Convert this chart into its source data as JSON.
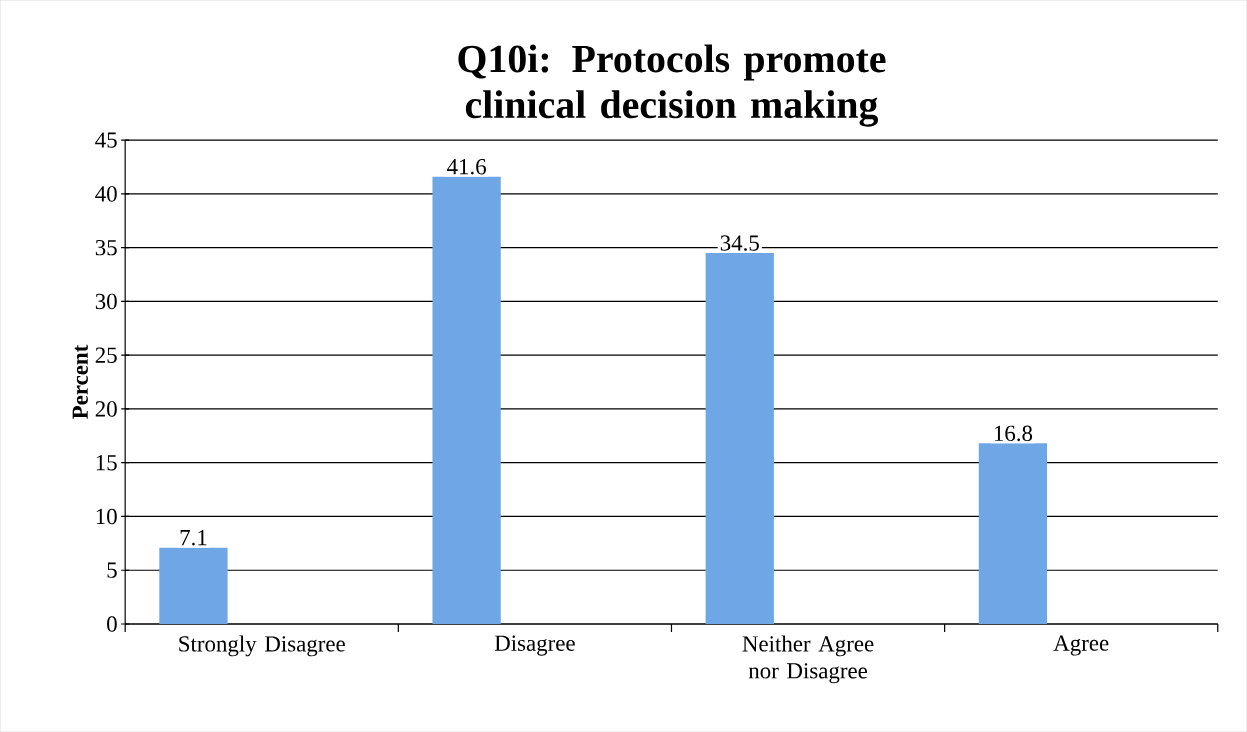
{
  "chart_data": {
    "type": "bar",
    "title": "Q10i: Protocols promote clinical decision making",
    "ylabel": "Percent",
    "categories": [
      "Strongly Disagree",
      "Disagree",
      "Neither Agree nor Disagree",
      "Agree"
    ],
    "values": [
      7.1,
      41.6,
      34.5,
      16.8
    ],
    "color": "#6ea6e6",
    "ylim": [
      0,
      45
    ],
    "yticks": [
      0,
      5,
      10,
      15,
      20,
      25,
      30,
      35,
      40,
      45
    ],
    "grid": "y",
    "data_labels": true
  }
}
